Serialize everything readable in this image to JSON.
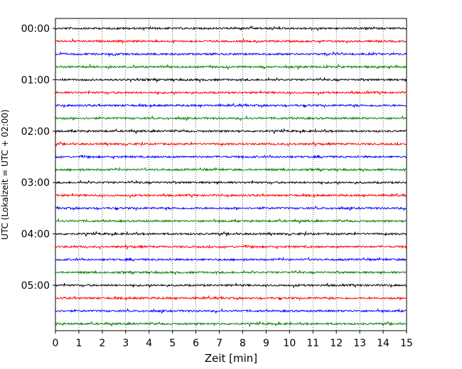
{
  "chart_data": {
    "type": "line",
    "title": "",
    "xlabel": "Zeit  [min]",
    "ylabel": "UTC (Lokalzeit = UTC + 02:00)",
    "xlim": [
      0,
      15
    ],
    "x_ticks": [
      "0",
      "1",
      "2",
      "3",
      "4",
      "5",
      "6",
      "7",
      "8",
      "9",
      "10",
      "11",
      "12",
      "13",
      "14",
      "15"
    ],
    "y_tick_labels": [
      "00:00",
      "01:00",
      "02:00",
      "03:00",
      "04:00",
      "05:00"
    ],
    "traces_per_hour": 4,
    "trace_count": 24,
    "trace_colors": [
      "#000000",
      "#ff0000",
      "#0000ff",
      "#008000"
    ],
    "grid": "vertical-dotted",
    "legend": "none"
  }
}
